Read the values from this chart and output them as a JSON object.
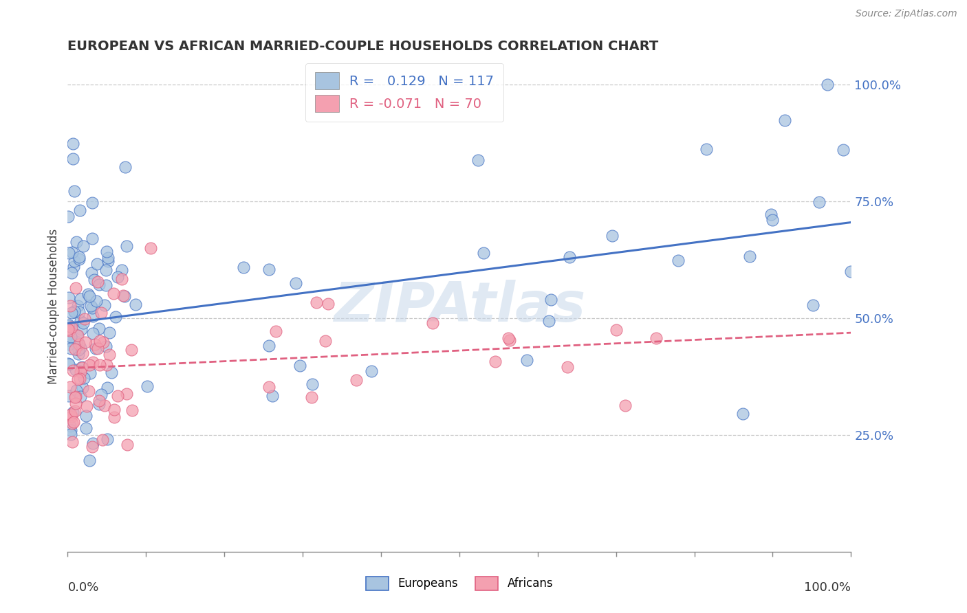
{
  "title": "EUROPEAN VS AFRICAN MARRIED-COUPLE HOUSEHOLDS CORRELATION CHART",
  "source": "Source: ZipAtlas.com",
  "ylabel": "Married-couple Households",
  "european_R": 0.129,
  "european_N": 117,
  "african_R": -0.071,
  "african_N": 70,
  "european_color": "#a8c4e0",
  "african_color": "#f4a0b0",
  "european_line_color": "#4472c4",
  "african_line_color": "#e06080",
  "watermark": "ZIPAtlas",
  "background_color": "#ffffff",
  "ytick_color": "#4472c4",
  "title_color": "#333333",
  "source_color": "#888888"
}
